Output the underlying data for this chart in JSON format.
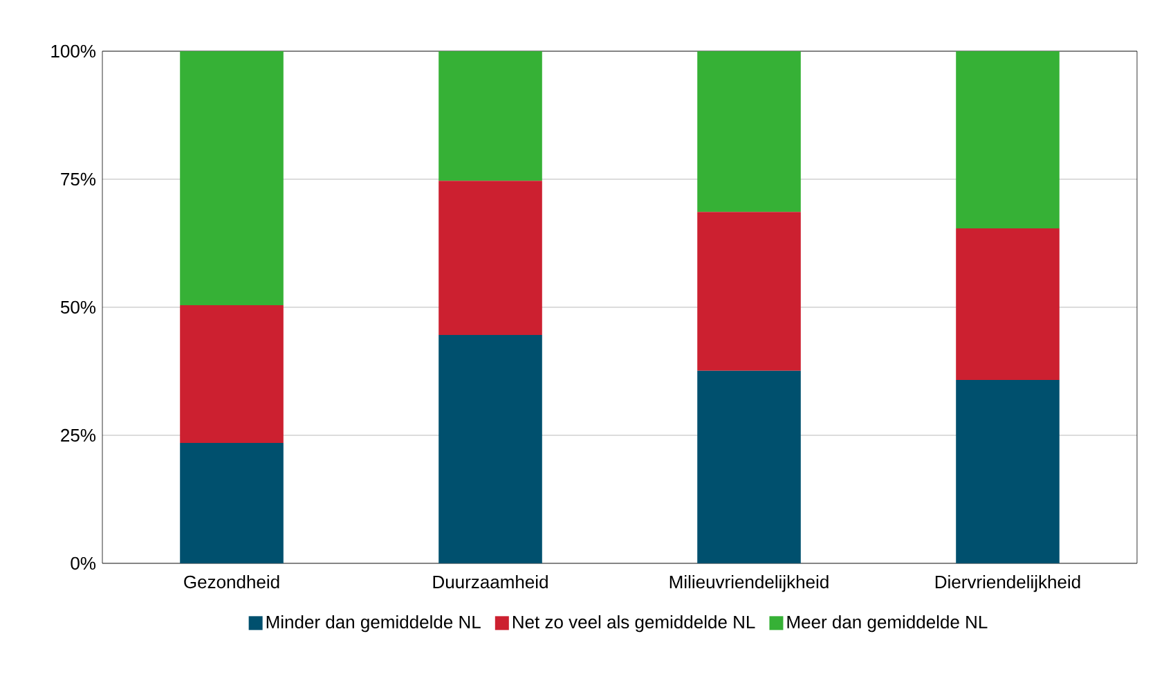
{
  "chart_data": {
    "type": "bar",
    "stacked": true,
    "categories": [
      "Gezondheid",
      "Duurzaamheid",
      "Milieuvriendelijkheid",
      "Diervriendelijkheid"
    ],
    "series": [
      {
        "name": "Minder dan gemiddelde NL",
        "color": "#00506e",
        "values": [
          23.5,
          44.6,
          37.6,
          35.8
        ]
      },
      {
        "name": "Net zo veel als gemiddelde NL",
        "color": "#cc2030",
        "values": [
          26.9,
          30.1,
          31.0,
          29.6
        ]
      },
      {
        "name": "Meer dan gemiddelde NL",
        "color": "#36b136",
        "values": [
          49.6,
          25.3,
          31.4,
          34.6
        ]
      }
    ],
    "ylim": [
      0,
      100
    ],
    "yticks": [
      {
        "value": 0,
        "label": "0%"
      },
      {
        "value": 25,
        "label": "25%"
      },
      {
        "value": 50,
        "label": "50%"
      },
      {
        "value": 75,
        "label": "75%"
      },
      {
        "value": 100,
        "label": "100%"
      }
    ],
    "grid": "y",
    "legend": "bottom"
  }
}
